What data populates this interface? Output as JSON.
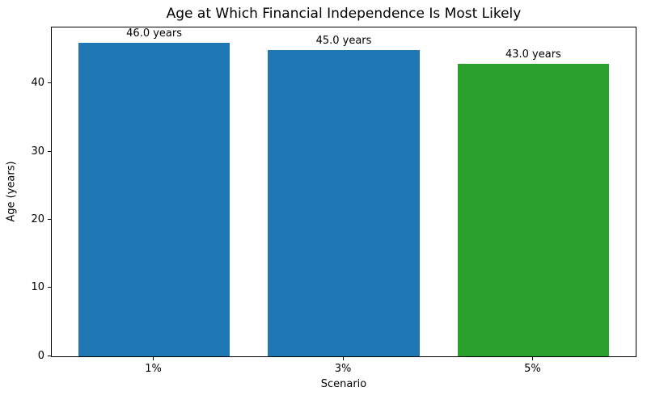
{
  "chart_data": {
    "type": "bar",
    "title": "Age at Which Financial Independence Is Most Likely",
    "xlabel": "Scenario",
    "ylabel": "Age (years)",
    "categories": [
      "1%",
      "3%",
      "5%"
    ],
    "values": [
      46.0,
      45.0,
      43.0
    ],
    "bar_labels": [
      "46.0 years",
      "45.0 years",
      "43.0 years"
    ],
    "bar_colors": [
      "#1f77b4",
      "#1f77b4",
      "#2ca02c"
    ],
    "yticks": [
      0,
      10,
      20,
      30,
      40
    ],
    "ylim": [
      0,
      48.3
    ],
    "xlim": [
      -0.54,
      2.54
    ],
    "bar_width": 0.8,
    "grid": false,
    "legend_position": "none",
    "background_color": "#ffffff",
    "spine_color": "#000000"
  }
}
